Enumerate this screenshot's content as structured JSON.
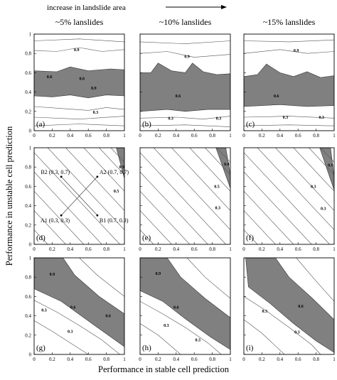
{
  "figure": {
    "trend_label": "increase in landslide area",
    "xlabel": "Performance in stable cell prediction",
    "ylabel": "Performance in unstable cell prediction"
  },
  "chart_data": [
    {
      "type": "contour",
      "panel": "(a)",
      "column_title": "~5% lanslides",
      "xlim": [
        0,
        1
      ],
      "ylim": [
        0,
        1
      ],
      "xticks": [
        "0",
        "0.2",
        "0.4",
        "0.6",
        "0.8",
        "1"
      ],
      "yticks": [
        "0",
        "0.2",
        "0.4",
        "0.6",
        "0.8",
        "1"
      ],
      "contour_levels": [
        0.3,
        0.6,
        0.9
      ],
      "shaded_band_y": [
        0.35,
        0.65
      ],
      "contour_labels": [
        {
          "text": "0.9",
          "x": 0.47,
          "y": 0.84
        },
        {
          "text": "0.6",
          "x": 0.17,
          "y": 0.56
        },
        {
          "text": "0.6",
          "x": 0.53,
          "y": 0.54
        },
        {
          "text": "0.9",
          "x": 0.66,
          "y": 0.44
        },
        {
          "text": "0.3",
          "x": 0.68,
          "y": 0.19
        }
      ]
    },
    {
      "type": "contour",
      "panel": "(b)",
      "column_title": "~10% lanslides",
      "xlim": [
        0,
        1
      ],
      "ylim": [
        0,
        1
      ],
      "contour_levels": [
        0.3,
        0.6,
        0.9
      ],
      "shaded_band_y": [
        0.2,
        0.6
      ],
      "contour_labels": [
        {
          "text": "0.9",
          "x": 0.52,
          "y": 0.77
        },
        {
          "text": "0.6",
          "x": 0.42,
          "y": 0.36
        },
        {
          "text": "0.3",
          "x": 0.34,
          "y": 0.13
        },
        {
          "text": "0.3",
          "x": 0.87,
          "y": 0.13
        }
      ]
    },
    {
      "type": "contour",
      "panel": "(c)",
      "column_title": "~15% lanslides",
      "xlim": [
        0,
        1
      ],
      "ylim": [
        0,
        1
      ],
      "contour_levels": [
        0.3,
        0.6,
        0.9
      ],
      "shaded_band_y": [
        0.25,
        0.6
      ],
      "contour_labels": [
        {
          "text": "0.9",
          "x": 0.58,
          "y": 0.83
        },
        {
          "text": "0.6",
          "x": 0.36,
          "y": 0.36
        },
        {
          "text": "0.3",
          "x": 0.46,
          "y": 0.14
        },
        {
          "text": "0.3",
          "x": 0.86,
          "y": 0.14
        }
      ]
    },
    {
      "type": "contour",
      "panel": "(d)",
      "xlim": [
        0,
        1
      ],
      "ylim": [
        0,
        1
      ],
      "xticks": [
        "0",
        "0.2",
        "0.4",
        "0.6",
        "0.8",
        "1"
      ],
      "yticks": [
        "0",
        "0.2",
        "0.4",
        "0.6",
        "0.8",
        "1"
      ],
      "contour_labels": [
        {
          "text": "0.9",
          "x": 0.97,
          "y": 0.8
        },
        {
          "text": "0.5",
          "x": 0.91,
          "y": 0.55
        }
      ],
      "points": [
        {
          "label": "A1 (0.3, 0.3)",
          "x": 0.3,
          "y": 0.3
        },
        {
          "label": "B1 (0.7, 0.3)",
          "x": 0.7,
          "y": 0.3
        },
        {
          "label": "B2 (0.3, 0.7)",
          "x": 0.3,
          "y": 0.7
        },
        {
          "label": "A2 (0.7, 0.7)",
          "x": 0.7,
          "y": 0.7
        }
      ]
    },
    {
      "type": "contour",
      "panel": "(e)",
      "xlim": [
        0,
        1
      ],
      "ylim": [
        0,
        1
      ],
      "contour_labels": [
        {
          "text": "0.8",
          "x": 0.96,
          "y": 0.83
        },
        {
          "text": "0.5",
          "x": 0.85,
          "y": 0.6
        },
        {
          "text": "0.3",
          "x": 0.86,
          "y": 0.38
        }
      ]
    },
    {
      "type": "contour",
      "panel": "(f)",
      "xlim": [
        0,
        1
      ],
      "ylim": [
        0,
        1
      ],
      "contour_labels": [
        {
          "text": "0.9",
          "x": 0.96,
          "y": 0.82
        },
        {
          "text": "0.3",
          "x": 0.77,
          "y": 0.6
        },
        {
          "text": "0.3",
          "x": 0.88,
          "y": 0.37
        }
      ]
    },
    {
      "type": "contour",
      "panel": "(g)",
      "xlim": [
        0,
        1
      ],
      "ylim": [
        0,
        1
      ],
      "xticks": [
        "0",
        "0.2",
        "0.4",
        "0.6",
        "0.8",
        "1"
      ],
      "yticks": [
        "0",
        "0.2",
        "0.4",
        "0.6",
        "0.8",
        "1"
      ],
      "contour_labels": [
        {
          "text": "0.9",
          "x": 0.2,
          "y": 0.83
        },
        {
          "text": "0.6",
          "x": 0.43,
          "y": 0.49
        },
        {
          "text": "0.6",
          "x": 0.82,
          "y": 0.4
        },
        {
          "text": "0.3",
          "x": 0.11,
          "y": 0.46
        },
        {
          "text": "0.3",
          "x": 0.4,
          "y": 0.24
        }
      ]
    },
    {
      "type": "contour",
      "panel": "(h)",
      "xlim": [
        0,
        1
      ],
      "ylim": [
        0,
        1
      ],
      "contour_labels": [
        {
          "text": "0.9",
          "x": 0.2,
          "y": 0.84
        },
        {
          "text": "0.6",
          "x": 0.4,
          "y": 0.49
        },
        {
          "text": "0.3",
          "x": 0.29,
          "y": 0.3
        },
        {
          "text": "0.3",
          "x": 0.64,
          "y": 0.15
        }
      ]
    },
    {
      "type": "contour",
      "panel": "(i)",
      "xlim": [
        0,
        1
      ],
      "ylim": [
        0,
        1
      ],
      "contour_labels": [
        {
          "text": "0.6",
          "x": 0.63,
          "y": 0.5
        },
        {
          "text": "0.3",
          "x": 0.23,
          "y": 0.45
        },
        {
          "text": "0.3",
          "x": 0.59,
          "y": 0.23
        }
      ]
    }
  ]
}
